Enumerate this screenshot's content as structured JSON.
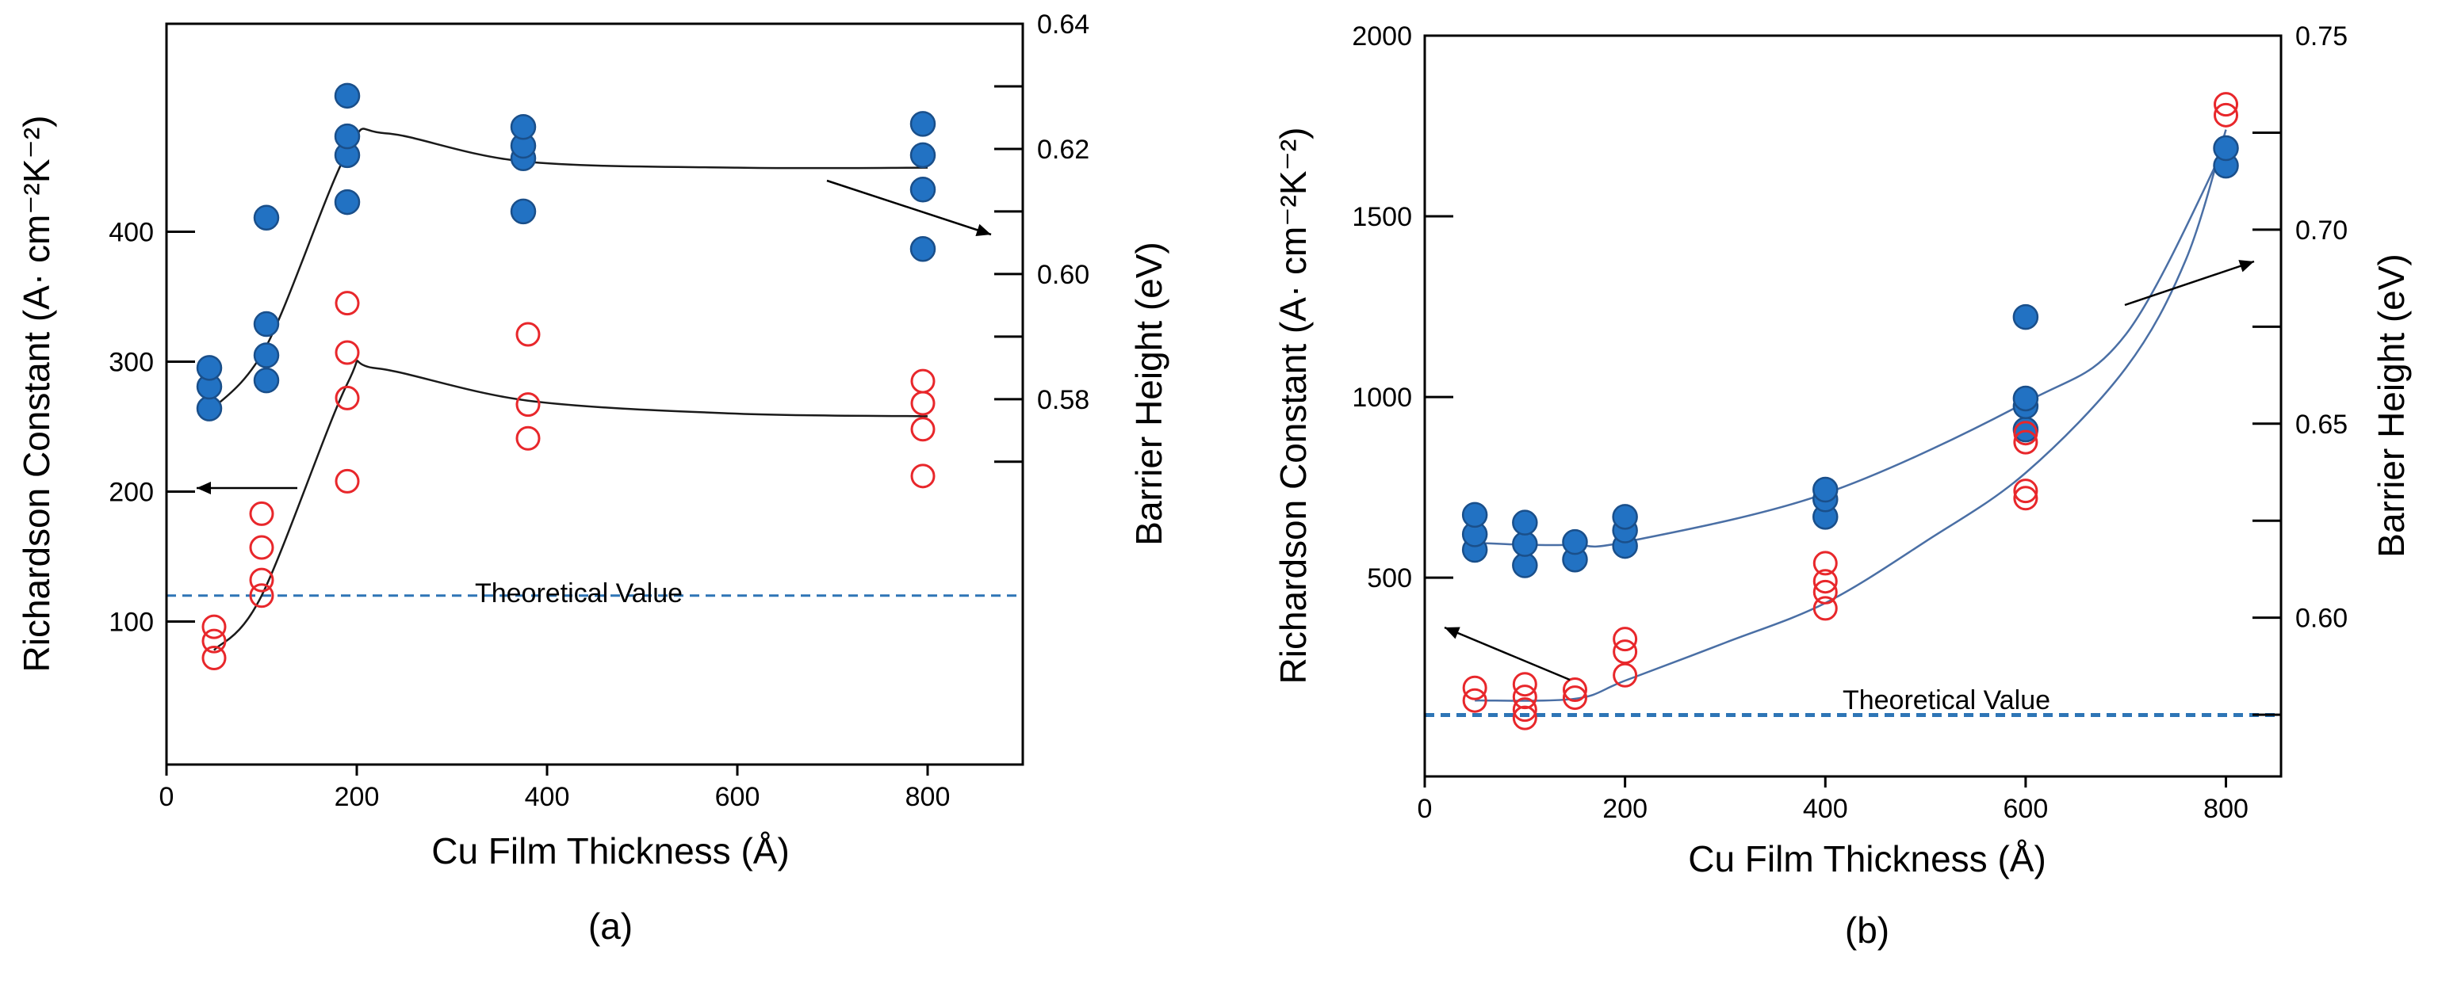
{
  "chart_data": [
    {
      "type": "scatter",
      "panel_label": "(a)",
      "xlabel": "Cu Film Thickness (Å)",
      "ylabel_left": "Richardson Constant (A· cm⁻²K⁻²)",
      "ylabel_right": "Barrier Height (eV)",
      "xlim": [
        0,
        900
      ],
      "ylim_left": [
        -10,
        560
      ],
      "ylim_right": [
        0.5216,
        0.64
      ],
      "x_ticks": [
        0,
        200,
        400,
        600,
        800
      ],
      "x_tick_labels": [
        "0",
        "200",
        "400",
        "600",
        "800"
      ],
      "y_left_ticks": [
        100,
        200,
        300,
        400
      ],
      "y_left_tick_labels": [
        "100",
        "200",
        "300",
        "400"
      ],
      "y_right_ticks": [
        0.58,
        0.6,
        0.62,
        0.64
      ],
      "y_right_tick_labels": [
        "0.58",
        "0.60",
        "0.62",
        "0.64"
      ],
      "y_right_minor_ticks": [
        0.57,
        0.59,
        0.61,
        0.63
      ],
      "theoretical_value": 120,
      "theoretical_label": "Theoretical Value",
      "series": [
        {
          "name": "Barrier Height",
          "axis": "right",
          "color": "#2272c3",
          "marker": "filled-circle",
          "x": [
            45,
            45,
            45,
            105,
            105,
            105,
            105,
            190,
            190,
            190,
            190,
            375,
            375,
            375,
            375,
            795,
            795,
            795,
            795
          ],
          "y": [
            0.5785,
            0.582,
            0.585,
            0.583,
            0.587,
            0.592,
            0.609,
            0.6115,
            0.619,
            0.622,
            0.6285,
            0.61,
            0.6185,
            0.6205,
            0.6235,
            0.604,
            0.6135,
            0.619,
            0.624
          ],
          "fit_x": [
            45,
            105,
            190,
            230,
            375,
            600,
            800
          ],
          "fit_y": [
            0.578,
            0.5885,
            0.6195,
            0.6225,
            0.618,
            0.617,
            0.617
          ]
        },
        {
          "name": "Richardson Constant",
          "axis": "left",
          "color": "#e8272b",
          "marker": "open-circle",
          "x": [
            50,
            50,
            50,
            100,
            100,
            100,
            100,
            190,
            190,
            190,
            190,
            380,
            380,
            380,
            795,
            795,
            795,
            795
          ],
          "y": [
            72,
            85,
            96,
            120,
            132,
            157,
            183,
            208,
            272,
            307,
            345,
            241,
            267,
            321,
            212,
            248,
            268,
            285
          ],
          "fit_x": [
            50,
            100,
            190,
            220,
            380,
            600,
            800
          ],
          "fit_y": [
            78,
            120,
            283,
            295,
            270,
            260,
            258
          ]
        }
      ],
      "arrow_hints": [
        {
          "points_to": "left axis"
        },
        {
          "points_to": "right axis"
        }
      ]
    },
    {
      "type": "scatter",
      "panel_label": "(b)",
      "xlabel": "Cu Film Thickness (Å)",
      "ylabel_left": "Richardson Constant (A· cm⁻²K⁻²)",
      "ylabel_right": "Barrier Height (eV)",
      "xlim": [
        0,
        855
      ],
      "ylim_left": [
        -50,
        2000
      ],
      "ylim_right": [
        0.5591,
        0.75
      ],
      "x_ticks": [
        0,
        200,
        400,
        600,
        800
      ],
      "x_tick_labels": [
        "0",
        "200",
        "400",
        "600",
        "800"
      ],
      "y_left_ticks": [
        500,
        1000,
        1500,
        2000
      ],
      "y_left_tick_labels": [
        "500",
        "1000",
        "1500",
        "2000"
      ],
      "y_right_ticks": [
        0.6,
        0.65,
        0.7,
        0.75
      ],
      "y_right_tick_labels": [
        "0.60",
        "0.65",
        "0.70",
        "0.75"
      ],
      "y_right_minor_ticks": [
        0.575,
        0.625,
        0.675,
        0.725
      ],
      "theoretical_value": 120,
      "theoretical_label": "Theoretical Value",
      "series": [
        {
          "name": "Barrier Height",
          "axis": "right",
          "color": "#2272c3",
          "marker": "filled-circle",
          "x": [
            50,
            50,
            50,
            100,
            100,
            100,
            150,
            150,
            200,
            200,
            200,
            400,
            400,
            400,
            600,
            600,
            600,
            600,
            800,
            800
          ],
          "y": [
            0.6175,
            0.6215,
            0.6265,
            0.6135,
            0.619,
            0.6245,
            0.615,
            0.6195,
            0.6185,
            0.6225,
            0.626,
            0.626,
            0.6305,
            0.633,
            0.6485,
            0.6545,
            0.6565,
            0.6775,
            0.7165,
            0.721
          ],
          "fit_x": [
            50,
            100,
            150,
            200,
            400,
            600,
            700,
            800
          ],
          "fit_y": [
            0.6193,
            0.6188,
            0.6188,
            0.6195,
            0.632,
            0.6555,
            0.673,
            0.722
          ]
        },
        {
          "name": "Richardson Constant",
          "axis": "left",
          "color": "#e8272b",
          "marker": "open-circle",
          "x": [
            50,
            50,
            100,
            100,
            100,
            100,
            150,
            150,
            200,
            200,
            200,
            400,
            400,
            400,
            400,
            600,
            600,
            600,
            600,
            800,
            800
          ],
          "y": [
            160,
            195,
            112,
            135,
            170,
            205,
            168,
            190,
            230,
            295,
            330,
            415,
            460,
            490,
            540,
            720,
            740,
            875,
            900,
            1780,
            1810
          ],
          "fit_x": [
            50,
            150,
            200,
            300,
            400,
            500,
            600,
            700,
            760,
            800
          ],
          "fit_y": [
            160,
            165,
            215,
            320,
            430,
            600,
            790,
            1080,
            1380,
            1740
          ]
        }
      ],
      "arrow_hints": [
        {
          "points_to": "left axis"
        },
        {
          "points_to": "right axis"
        }
      ]
    }
  ]
}
